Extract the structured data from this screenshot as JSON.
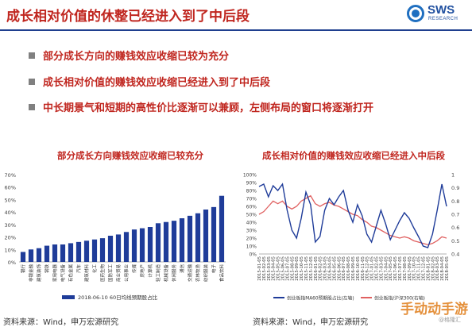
{
  "header": {
    "title": "成长相对价值的休整已经进入到了中后段",
    "logo_text": "SWS",
    "logo_sub": "RESEARCH"
  },
  "bullets": [
    "部分成长方向的赚钱效应收缩已较为充分",
    "成长相对价值的赚钱效应收缩已经进入到了中后段",
    "中长期景气和短期的高性价比逐渐可以兼顾，左侧布局的窗口将逐渐打开"
  ],
  "charts": {
    "left_title": "部分成长方向赚钱效应收缩已较充分",
    "right_title": "成长相对价值的赚钱效应收缩已经进入中后段"
  },
  "sources": {
    "left": "资料来源：Wind，申万宏源研究",
    "right": "资料来源：Wind，申万宏源研究"
  },
  "watermark": {
    "main": "手动动手游",
    "small": "@格隆汇"
  },
  "colors": {
    "accent_red": "#c0261f",
    "brand_blue": "#1f3f8f",
    "bar_blue": "#1f3c99",
    "line_red": "#e06060"
  },
  "chart_data": [
    {
      "type": "bar",
      "categories": [
        "银行",
        "非银金融",
        "建筑装饰",
        "钢铁",
        "家用电器",
        "电气设备",
        "有色金属",
        "汽车",
        "建筑材料",
        "化工",
        "医药生物",
        "国防军工",
        "商业贸易",
        "公用事业",
        "传媒",
        "房地产",
        "计算机",
        "轻工制造",
        "机械设备",
        "休闲服务",
        "通信",
        "交通运输",
        "农林牧渔",
        "纺织服装",
        "电子",
        "食品饮料"
      ],
      "values": [
        8,
        10,
        11,
        13,
        14,
        14,
        15,
        16,
        17,
        18,
        19,
        21,
        22,
        24,
        26,
        27,
        28,
        31,
        32,
        33,
        35,
        37,
        39,
        42,
        44,
        53
      ],
      "ylim": [
        0,
        70
      ],
      "yticks": [
        "0%",
        "10%",
        "20%",
        "30%",
        "40%",
        "50%",
        "60%",
        "70%"
      ],
      "legend": "2018-06-10 60日均线预期股占比",
      "legend_position": "bottom"
    },
    {
      "type": "line",
      "x_labels": [
        "2015-01-05",
        "2015-02-05",
        "2015-03-05",
        "2015-04-05",
        "2015-05-05",
        "2015-06-05",
        "2015-07-05",
        "2015-08-05",
        "2015-09-05",
        "2015-10-05",
        "2015-11-05",
        "2015-12-05",
        "2016-01-05",
        "2016-02-05",
        "2016-03-05",
        "2016-04-05",
        "2016-05-05",
        "2016-06-05",
        "2016-07-05",
        "2016-08-05",
        "2016-09-05",
        "2016-10-05",
        "2016-11-05",
        "2016-12-05",
        "2017-01-05",
        "2017-02-05",
        "2017-03-05",
        "2017-04-05",
        "2017-05-05",
        "2017-06-05",
        "2017-07-05",
        "2017-08-05",
        "2017-09-05",
        "2017-10-05",
        "2017-11-05",
        "2017-12-05",
        "2018-01-05",
        "2018-02-05",
        "2018-03-05",
        "2018-04-05",
        "2018-05-05"
      ],
      "series": [
        {
          "name": "创业板指MA60预期股占比(左轴)",
          "color": "#1f3c99",
          "values": [
            0.85,
            0.88,
            0.72,
            0.86,
            0.8,
            0.88,
            0.55,
            0.3,
            0.2,
            0.45,
            0.78,
            0.62,
            0.15,
            0.22,
            0.55,
            0.7,
            0.62,
            0.72,
            0.8,
            0.55,
            0.4,
            0.62,
            0.48,
            0.25,
            0.15,
            0.35,
            0.55,
            0.38,
            0.18,
            0.3,
            0.42,
            0.52,
            0.45,
            0.33,
            0.22,
            0.1,
            0.08,
            0.25,
            0.55,
            0.88,
            0.6
          ]
        },
        {
          "name": "创业板指/沪深300(右轴)",
          "color": "#e06060",
          "values": [
            0.7,
            0.72,
            0.76,
            0.8,
            0.78,
            0.8,
            0.76,
            0.74,
            0.76,
            0.8,
            0.82,
            0.84,
            0.78,
            0.76,
            0.78,
            0.79,
            0.77,
            0.76,
            0.74,
            0.72,
            0.7,
            0.69,
            0.66,
            0.64,
            0.61,
            0.6,
            0.58,
            0.56,
            0.54,
            0.53,
            0.52,
            0.53,
            0.52,
            0.5,
            0.49,
            0.48,
            0.47,
            0.48,
            0.5,
            0.53,
            0.52
          ]
        }
      ],
      "ylim_left": [
        0,
        1
      ],
      "ylim_right": [
        0.4,
        1
      ],
      "yticks_left": [
        "0%",
        "10%",
        "20%",
        "30%",
        "40%",
        "50%",
        "60%",
        "70%",
        "80%",
        "90%",
        "100%"
      ],
      "yticks_right": [
        "0.4",
        "0.5",
        "0.6",
        "0.7",
        "0.8",
        "0.9",
        "1"
      ],
      "legend_position": "bottom"
    }
  ]
}
